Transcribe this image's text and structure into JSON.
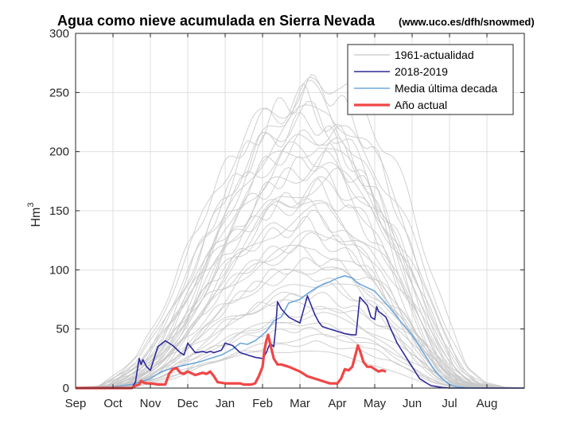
{
  "chart_data": {
    "type": "line",
    "title": "Agua como nieve acumulada en Sierra Nevada",
    "subtitle": "(www.uco.es/dfh/snowmed)",
    "xlabel": "",
    "ylabel": "Hm",
    "ylabel_sup": "3",
    "x_tick_labels": [
      "Sep",
      "Oct",
      "Nov",
      "Dec",
      "Jan",
      "Feb",
      "Mar",
      "Apr",
      "May",
      "Jun",
      "Jul",
      "Aug"
    ],
    "xlim": [
      0,
      12
    ],
    "ylim": [
      0,
      300
    ],
    "y_ticks": [
      0,
      50,
      100,
      150,
      200,
      250,
      300
    ],
    "grid": true,
    "legend_position": "top-right",
    "legend": [
      "1961-actualidad",
      "2018-2019",
      "Media última decada",
      "Año actual"
    ],
    "colors": {
      "historical": "#c8c8c8",
      "season_2018_2019": "#2e2a9a",
      "decade_mean": "#6fa8dc",
      "current_year": "#f04646"
    },
    "series": [
      {
        "name": "1961-actualidad",
        "note_shape": "envelope",
        "x": [
          0,
          1,
          1.5,
          2,
          2.5,
          3,
          3.5,
          4,
          4.5,
          5,
          5.5,
          6,
          6.5,
          7,
          7.5,
          8,
          8.5,
          9,
          9.5,
          10,
          10.5,
          11,
          11.5,
          12
        ],
        "values": [
          0,
          2,
          15,
          30,
          60,
          100,
          140,
          180,
          210,
          235,
          250,
          260,
          270,
          250,
          230,
          200,
          160,
          110,
          60,
          20,
          5,
          1,
          0,
          0
        ]
      },
      {
        "name": "2018-2019",
        "x": [
          0,
          1.5,
          1.6,
          1.7,
          1.75,
          1.8,
          1.9,
          2.0,
          2.1,
          2.2,
          2.4,
          2.5,
          2.6,
          2.8,
          2.9,
          3.0,
          3.2,
          3.4,
          3.5,
          3.6,
          3.7,
          3.8,
          3.9,
          4.0,
          4.2,
          4.4,
          4.6,
          4.8,
          5.0,
          5.1,
          5.2,
          5.3,
          5.35,
          5.4,
          5.5,
          5.7,
          6.0,
          6.2,
          6.4,
          6.5,
          6.6,
          6.8,
          7.0,
          7.2,
          7.4,
          7.5,
          7.55,
          7.6,
          7.8,
          7.9,
          8.0,
          8.05,
          8.1,
          8.3,
          8.4,
          8.5,
          8.6,
          8.8,
          9.0,
          9.2,
          9.5,
          9.8,
          10.0,
          10.2,
          10.5,
          12
        ],
        "values": [
          0,
          0,
          5,
          25,
          20,
          24,
          18,
          15,
          25,
          35,
          40,
          38,
          36,
          30,
          28,
          38,
          30,
          31,
          30,
          31,
          30,
          31,
          32,
          38,
          36,
          30,
          28,
          26,
          25,
          30,
          38,
          35,
          50,
          73,
          67,
          60,
          55,
          78,
          62,
          56,
          52,
          50,
          48,
          46,
          45,
          45,
          60,
          77,
          70,
          60,
          58,
          69,
          65,
          60,
          52,
          45,
          38,
          28,
          18,
          8,
          2,
          0.5,
          0,
          0,
          0,
          0
        ]
      },
      {
        "name": "Media última decada",
        "x": [
          0,
          1,
          1.5,
          2,
          2.3,
          2.6,
          3.0,
          3.3,
          3.6,
          3.9,
          4.2,
          4.4,
          4.6,
          4.8,
          5.0,
          5.1,
          5.2,
          5.3,
          5.5,
          5.7,
          6.0,
          6.2,
          6.5,
          6.8,
          7.0,
          7.2,
          7.4,
          7.5,
          7.6,
          7.8,
          8.0,
          8.2,
          8.4,
          8.6,
          8.8,
          9.0,
          9.2,
          9.4,
          9.6,
          9.8,
          10.0,
          10.2,
          10.5,
          11,
          12
        ],
        "values": [
          0,
          1,
          3,
          8,
          14,
          17,
          20,
          22,
          25,
          28,
          33,
          38,
          37,
          40,
          45,
          48,
          52,
          57,
          60,
          72,
          75,
          80,
          86,
          90,
          93,
          95,
          93,
          90,
          88,
          85,
          82,
          75,
          68,
          60,
          52,
          45,
          35,
          25,
          15,
          8,
          3,
          1,
          0.3,
          0,
          0
        ]
      },
      {
        "name": "Año actual",
        "x": [
          0,
          1.5,
          1.6,
          1.7,
          1.75,
          1.8,
          1.9,
          2.0,
          2.2,
          2.4,
          2.5,
          2.6,
          2.7,
          2.8,
          2.9,
          3.0,
          3.2,
          3.4,
          3.5,
          3.6,
          3.7,
          3.8,
          4.0,
          4.2,
          4.4,
          4.5,
          4.6,
          4.7,
          4.8,
          4.9,
          5.0,
          5.05,
          5.1,
          5.15,
          5.2,
          5.3,
          5.4,
          5.5,
          5.7,
          6.0,
          6.2,
          6.4,
          6.6,
          6.8,
          7.0,
          7.1,
          7.2,
          7.3,
          7.4,
          7.5,
          7.55,
          7.6,
          7.7,
          7.8,
          7.9,
          8.0,
          8.1,
          8.2,
          8.3
        ],
        "values": [
          0,
          0,
          2,
          3,
          6,
          5,
          4,
          4,
          3,
          3,
          12,
          16,
          17,
          13,
          12,
          14,
          11,
          13,
          12,
          14,
          10,
          5,
          4,
          4,
          4,
          3,
          3,
          3,
          4,
          10,
          18,
          32,
          40,
          45,
          38,
          25,
          20,
          20,
          18,
          14,
          10,
          8,
          6,
          4,
          4,
          8,
          16,
          15,
          18,
          30,
          36,
          32,
          22,
          18,
          18,
          16,
          14,
          15,
          14
        ]
      }
    ]
  }
}
